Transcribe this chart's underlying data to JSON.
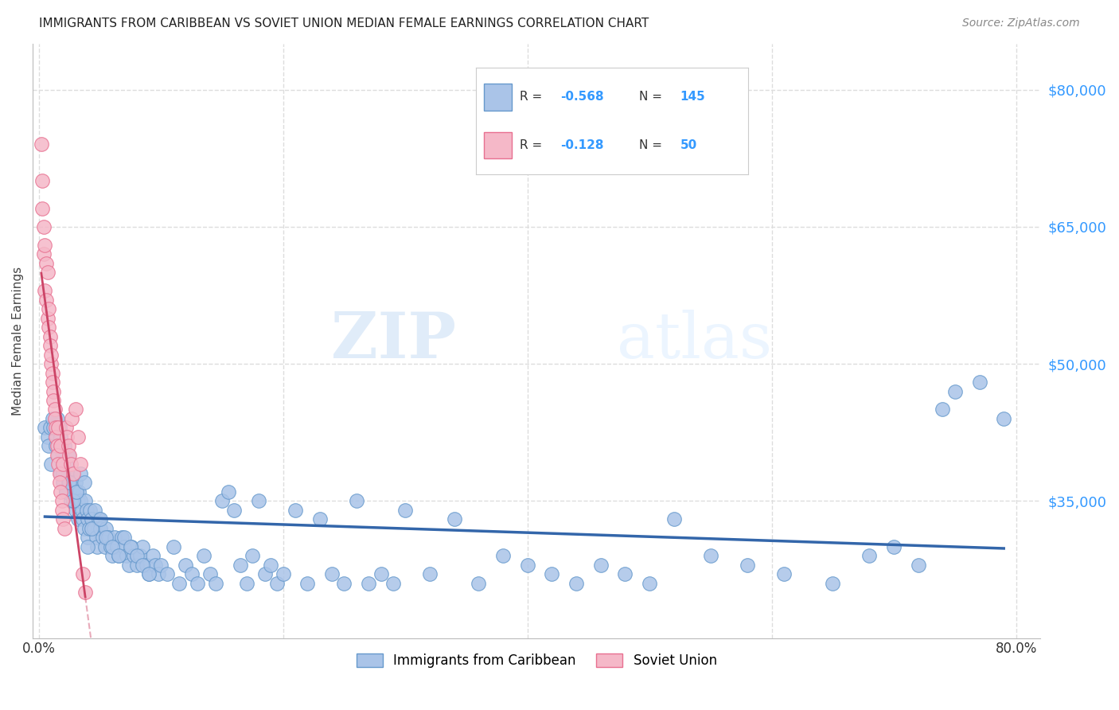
{
  "title": "IMMIGRANTS FROM CARIBBEAN VS SOVIET UNION MEDIAN FEMALE EARNINGS CORRELATION CHART",
  "source": "Source: ZipAtlas.com",
  "ylabel": "Median Female Earnings",
  "ytick_labels": [
    "$80,000",
    "$65,000",
    "$50,000",
    "$35,000"
  ],
  "ytick_values": [
    80000,
    65000,
    50000,
    35000
  ],
  "ymin": 20000,
  "ymax": 85000,
  "xmin": -0.005,
  "xmax": 0.82,
  "legend_r_caribbean": "-0.568",
  "legend_n_caribbean": "145",
  "legend_r_soviet": "-0.128",
  "legend_n_soviet": "50",
  "caribbean_color": "#aac4e8",
  "caribbean_edge": "#6699cc",
  "soviet_color": "#f5b8c8",
  "soviet_edge": "#e87090",
  "trendline_caribbean_color": "#3366aa",
  "trendline_soviet_color": "#cc4466",
  "watermark_zip": "ZIP",
  "watermark_atlas": "atlas",
  "background_color": "#ffffff",
  "grid_color": "#dddddd",
  "caribbean_x": [
    0.01,
    0.013,
    0.015,
    0.017,
    0.018,
    0.019,
    0.02,
    0.021,
    0.022,
    0.022,
    0.023,
    0.024,
    0.024,
    0.025,
    0.026,
    0.027,
    0.027,
    0.028,
    0.029,
    0.03,
    0.03,
    0.031,
    0.032,
    0.032,
    0.033,
    0.034,
    0.035,
    0.036,
    0.037,
    0.038,
    0.039,
    0.04,
    0.04,
    0.041,
    0.042,
    0.043,
    0.045,
    0.047,
    0.048,
    0.049,
    0.05,
    0.052,
    0.054,
    0.055,
    0.057,
    0.059,
    0.06,
    0.062,
    0.064,
    0.065,
    0.068,
    0.07,
    0.072,
    0.074,
    0.076,
    0.078,
    0.08,
    0.083,
    0.085,
    0.088,
    0.09,
    0.093,
    0.095,
    0.098,
    0.1,
    0.105,
    0.11,
    0.115,
    0.12,
    0.125,
    0.13,
    0.135,
    0.14,
    0.145,
    0.15,
    0.155,
    0.16,
    0.165,
    0.17,
    0.175,
    0.18,
    0.185,
    0.19,
    0.195,
    0.2,
    0.21,
    0.22,
    0.23,
    0.24,
    0.25,
    0.26,
    0.27,
    0.28,
    0.29,
    0.3,
    0.32,
    0.34,
    0.36,
    0.38,
    0.4,
    0.42,
    0.44,
    0.46,
    0.48,
    0.5,
    0.52,
    0.55,
    0.58,
    0.61,
    0.65,
    0.68,
    0.7,
    0.72,
    0.74,
    0.75,
    0.77,
    0.79,
    0.005,
    0.007,
    0.008,
    0.009,
    0.011,
    0.012,
    0.014,
    0.016,
    0.018,
    0.02,
    0.022,
    0.025,
    0.028,
    0.031,
    0.034,
    0.037,
    0.04,
    0.043,
    0.046,
    0.05,
    0.055,
    0.06,
    0.065,
    0.07,
    0.075,
    0.08,
    0.085,
    0.09
  ],
  "caribbean_y": [
    39000,
    42000,
    44000,
    43000,
    38000,
    40000,
    37000,
    41000,
    36000,
    39000,
    38000,
    37000,
    40000,
    36000,
    35000,
    38000,
    37000,
    36000,
    35000,
    34000,
    37000,
    36000,
    35000,
    33000,
    36000,
    35000,
    34000,
    33000,
    32000,
    35000,
    34000,
    33000,
    31000,
    32000,
    34000,
    33000,
    32000,
    31000,
    30000,
    33000,
    32000,
    31000,
    30000,
    32000,
    31000,
    30000,
    29000,
    31000,
    30000,
    29000,
    31000,
    30000,
    29000,
    28000,
    30000,
    29000,
    28000,
    29000,
    30000,
    28000,
    27000,
    29000,
    28000,
    27000,
    28000,
    27000,
    30000,
    26000,
    28000,
    27000,
    26000,
    29000,
    27000,
    26000,
    35000,
    36000,
    34000,
    28000,
    26000,
    29000,
    35000,
    27000,
    28000,
    26000,
    27000,
    34000,
    26000,
    33000,
    27000,
    26000,
    35000,
    26000,
    27000,
    26000,
    34000,
    27000,
    33000,
    26000,
    29000,
    28000,
    27000,
    26000,
    28000,
    27000,
    26000,
    33000,
    29000,
    28000,
    27000,
    26000,
    29000,
    30000,
    28000,
    45000,
    47000,
    48000,
    44000,
    43000,
    42000,
    41000,
    43000,
    44000,
    43000,
    41000,
    40000,
    42000,
    38000,
    36000,
    37000,
    35000,
    36000,
    38000,
    37000,
    30000,
    32000,
    34000,
    33000,
    31000,
    30000,
    29000,
    31000,
    30000,
    29000,
    28000,
    27000
  ],
  "soviet_x": [
    0.002,
    0.003,
    0.003,
    0.004,
    0.004,
    0.005,
    0.005,
    0.006,
    0.006,
    0.007,
    0.007,
    0.008,
    0.008,
    0.009,
    0.009,
    0.01,
    0.01,
    0.011,
    0.011,
    0.012,
    0.012,
    0.013,
    0.013,
    0.014,
    0.014,
    0.015,
    0.015,
    0.016,
    0.016,
    0.017,
    0.017,
    0.018,
    0.018,
    0.019,
    0.019,
    0.02,
    0.02,
    0.021,
    0.022,
    0.023,
    0.024,
    0.025,
    0.026,
    0.027,
    0.028,
    0.03,
    0.032,
    0.034,
    0.036,
    0.038
  ],
  "soviet_y": [
    74000,
    70000,
    67000,
    65000,
    62000,
    58000,
    63000,
    57000,
    61000,
    55000,
    60000,
    54000,
    56000,
    53000,
    52000,
    50000,
    51000,
    49000,
    48000,
    47000,
    46000,
    45000,
    44000,
    43000,
    42000,
    41000,
    40000,
    43000,
    39000,
    38000,
    37000,
    41000,
    36000,
    35000,
    34000,
    39000,
    33000,
    32000,
    43000,
    42000,
    41000,
    40000,
    39000,
    44000,
    38000,
    45000,
    42000,
    39000,
    27000,
    25000
  ]
}
